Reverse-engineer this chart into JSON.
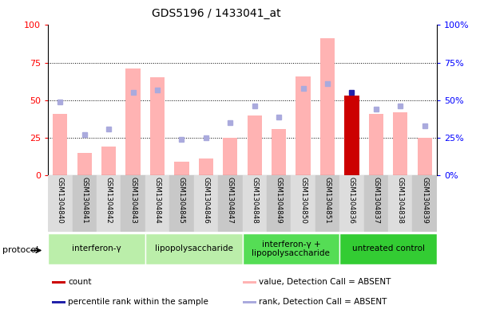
{
  "title": "GDS5196 / 1433041_at",
  "samples": [
    "GSM1304840",
    "GSM1304841",
    "GSM1304842",
    "GSM1304843",
    "GSM1304844",
    "GSM1304845",
    "GSM1304846",
    "GSM1304847",
    "GSM1304848",
    "GSM1304849",
    "GSM1304850",
    "GSM1304851",
    "GSM1304836",
    "GSM1304837",
    "GSM1304838",
    "GSM1304839"
  ],
  "bar_values": [
    41,
    15,
    19,
    71,
    65,
    9,
    11,
    25,
    40,
    31,
    66,
    91,
    53,
    41,
    42,
    25
  ],
  "rank_dots": [
    49,
    27,
    31,
    55,
    57,
    24,
    25,
    35,
    46,
    39,
    58,
    61,
    55,
    44,
    46,
    33
  ],
  "bar_special_idx": 12,
  "bar_color_normal": "#FFB3B3",
  "bar_color_red": "#CC0000",
  "rank_dot_color": "#AAAADD",
  "rank_dot_special_color": "#2222AA",
  "rank_dot_special_idx": 12,
  "ylim": [
    0,
    100
  ],
  "yticks": [
    0,
    25,
    50,
    75,
    100
  ],
  "groups": [
    {
      "label": "interferon-γ",
      "start": 0,
      "end": 4,
      "color": "#BBEEAA"
    },
    {
      "label": "lipopolysaccharide",
      "start": 4,
      "end": 8,
      "color": "#BBEEAA"
    },
    {
      "label": "interferon-γ +\nlipopolysaccharide",
      "start": 8,
      "end": 12,
      "color": "#55DD55"
    },
    {
      "label": "untreated control",
      "start": 12,
      "end": 16,
      "color": "#33CC33"
    }
  ],
  "legend_items": [
    {
      "label": "count",
      "color": "#CC0000"
    },
    {
      "label": "percentile rank within the sample",
      "color": "#2222AA"
    },
    {
      "label": "value, Detection Call = ABSENT",
      "color": "#FFB3B3"
    },
    {
      "label": "rank, Detection Call = ABSENT",
      "color": "#AAAADD"
    }
  ],
  "background_color": "#FFFFFF",
  "plot_bg": "#FFFFFF",
  "tick_label_bg": "#CCCCCC"
}
